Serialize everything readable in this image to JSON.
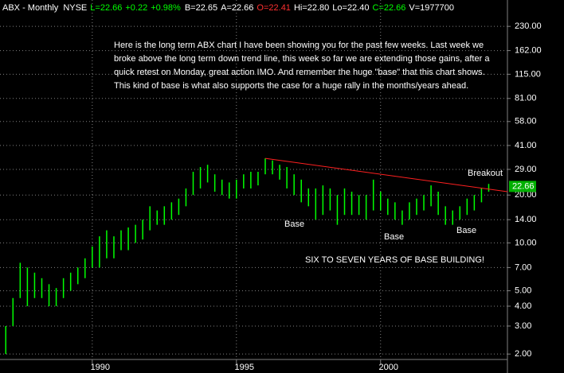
{
  "chart_data": {
    "type": "range_bar",
    "header": [
      {
        "text": "ABX - Monthly",
        "color": "#ffffff"
      },
      {
        "text": "NYSE",
        "color": "#ffffff"
      },
      {
        "text": "L=22.66",
        "color": "#00ff00"
      },
      {
        "text": "+0.22",
        "color": "#00ff00"
      },
      {
        "text": "+0.98%",
        "color": "#00ff00"
      },
      {
        "text": "B=22.65",
        "color": "#ffffff"
      },
      {
        "text": "A=22.66",
        "color": "#ffffff"
      },
      {
        "text": "O=22.41",
        "color": "#ff3030"
      },
      {
        "text": "Hi=22.80",
        "color": "#ffffff"
      },
      {
        "text": "Lo=22.40",
        "color": "#ffffff"
      },
      {
        "text": "C=22.66",
        "color": "#00ff00"
      },
      {
        "text": "V=1977700",
        "color": "#ffffff"
      }
    ],
    "commentary": [
      "Here is the long term ABX chart I have been showing you for the past few weeks. Last week we",
      "broke above the long term down trend line, this week so far we are extending those gains, after a",
      "quick retest on Monday, great action IMO. And remember the huge \"base\" that this chart shows.",
      "This kind of base is what also supports the case for a huge rally in the months/years ahead."
    ],
    "annotations": [
      "Base",
      "Base",
      "Base",
      "Breakout",
      "SIX TO SEVEN YEARS OF BASE BUILDING!"
    ],
    "color": "#00ff00",
    "x": [
      1987.0,
      1987.25,
      1987.5,
      1987.75,
      1988.0,
      1988.25,
      1988.5,
      1988.75,
      1989.0,
      1989.25,
      1989.5,
      1989.75,
      1990.0,
      1990.25,
      1990.5,
      1990.75,
      1991.0,
      1991.25,
      1991.5,
      1991.75,
      1992.0,
      1992.25,
      1992.5,
      1992.75,
      1993.0,
      1993.25,
      1993.5,
      1993.75,
      1994.0,
      1994.25,
      1994.5,
      1994.75,
      1995.0,
      1995.25,
      1995.5,
      1995.75,
      1996.0,
      1996.25,
      1996.5,
      1996.75,
      1997.0,
      1997.25,
      1997.5,
      1997.75,
      1998.0,
      1998.25,
      1998.5,
      1998.75,
      1999.0,
      1999.25,
      1999.5,
      1999.75,
      2000.0,
      2000.25,
      2000.5,
      2000.75,
      2001.0,
      2001.25,
      2001.5,
      2001.75,
      2002.0,
      2002.25,
      2002.5,
      2002.75,
      2003.0,
      2003.25,
      2003.5,
      2003.75
    ],
    "high": [
      3,
      4.5,
      7.5,
      7,
      6.5,
      6,
      5.5,
      5.2,
      6,
      6.5,
      7,
      8,
      9.5,
      11,
      12,
      11,
      12,
      12.5,
      13,
      14,
      17,
      16,
      17,
      18,
      19,
      22,
      28,
      30,
      31,
      27,
      25,
      24,
      25,
      27,
      28,
      28,
      34,
      33,
      31,
      30,
      27,
      25,
      22,
      22,
      23,
      22,
      20,
      22,
      21,
      20,
      20,
      25,
      21,
      19,
      18,
      16,
      18,
      19,
      20,
      23,
      21,
      17,
      16,
      17,
      19,
      20,
      22,
      23.5
    ],
    "low": [
      2,
      3,
      4.5,
      4,
      4.5,
      4.5,
      4,
      4,
      4.5,
      5,
      5.5,
      6,
      7,
      7,
      8,
      8,
      9,
      9,
      10,
      10.5,
      12,
      13,
      13,
      14,
      15,
      17,
      20,
      22,
      24,
      21,
      20,
      19,
      19,
      22,
      22,
      23,
      27,
      27,
      25,
      22,
      20,
      18,
      17,
      14,
      15,
      16,
      13,
      15,
      15,
      15,
      14,
      16,
      16,
      15,
      14,
      13,
      14,
      15,
      16,
      17,
      15,
      13,
      13,
      14,
      15,
      16,
      18,
      21
    ],
    "trendline": {
      "x": [
        1996.0,
        2004.4
      ],
      "y": [
        34,
        21
      ],
      "color": "#ff2020"
    },
    "last_value": {
      "value": 22.66,
      "label": "22.66"
    },
    "log_scale": true,
    "grid": true,
    "xlim": [
      1986.8,
      2004.4
    ],
    "xticks": [
      1990,
      1995,
      2000
    ],
    "ylim": [
      1.52,
      337
    ],
    "yticks": [
      {
        "value": 230,
        "label": "230.00"
      },
      {
        "value": 162,
        "label": "162.00"
      },
      {
        "value": 115,
        "label": "115.00"
      },
      {
        "value": 81,
        "label": "81.00"
      },
      {
        "value": 58,
        "label": "58.00"
      },
      {
        "value": 41,
        "label": "41.00"
      },
      {
        "value": 29,
        "label": "29.00"
      },
      {
        "value": 20,
        "label": "20.00"
      },
      {
        "value": 14,
        "label": "14.00"
      },
      {
        "value": 10,
        "label": "10.00"
      },
      {
        "value": 7,
        "label": "7.00"
      },
      {
        "value": 5,
        "label": "5.00"
      },
      {
        "value": 4,
        "label": "4.00"
      },
      {
        "value": 3,
        "label": "3.00"
      },
      {
        "value": 2,
        "label": "2.00"
      }
    ]
  }
}
